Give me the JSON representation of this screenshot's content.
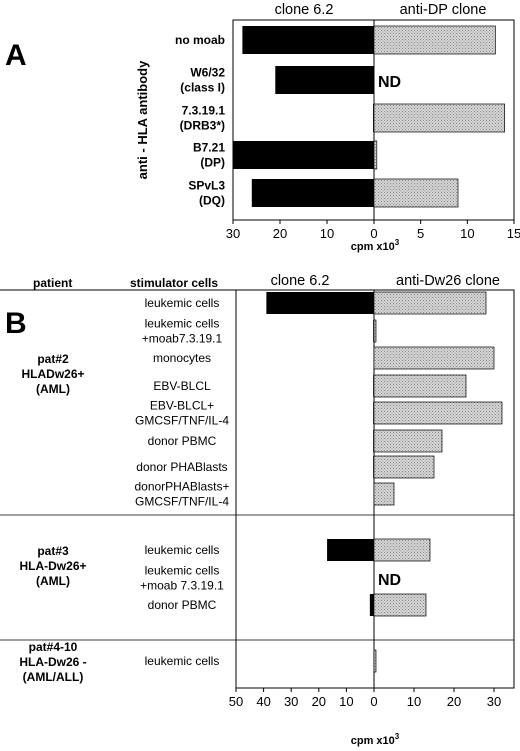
{
  "chart_data": [
    {
      "panel": "A",
      "type": "bar",
      "orientation": "horizontal-diverging",
      "column_headers": [
        "clone 6.2",
        "anti-DP clone"
      ],
      "group_label": "anti - HLA antibody",
      "categories": [
        "no moab",
        "W6/32 (class I)",
        "7.3.19.1 (DRB3*)",
        "B7.21 (DP)",
        "SPvL3 (DQ)"
      ],
      "category_lines": [
        [
          "no moab"
        ],
        [
          "W6/32",
          "(class I)"
        ],
        [
          "7.3.19.1",
          "(DRB3*)"
        ],
        [
          "B7.21",
          "(DP)"
        ],
        [
          "SPvL3",
          "(DQ)"
        ]
      ],
      "series": [
        {
          "name": "clone 6.2",
          "color": "#000000",
          "values": [
            28,
            21,
            0.2,
            30,
            26
          ]
        },
        {
          "name": "anti-DP clone",
          "color": "#c8c8c8",
          "values": [
            13,
            null,
            14,
            0.3,
            9
          ]
        }
      ],
      "annotations": [
        {
          "category_index": 1,
          "side": "right",
          "text": "ND"
        }
      ],
      "left_ticks": [
        "30",
        "20",
        "10",
        "0"
      ],
      "right_ticks": [
        "5",
        "10",
        "15"
      ],
      "xlabel": "cpm x10",
      "xlabel_exponent": "3",
      "left_range": [
        0,
        30
      ],
      "right_range": [
        0,
        15
      ],
      "grid": false
    },
    {
      "panel": "B",
      "type": "bar",
      "orientation": "horizontal-diverging",
      "column_headers": [
        "patient",
        "stimulator cells",
        "clone 6.2",
        "anti-Dw26 clone"
      ],
      "groups": [
        {
          "lines": [
            "pat#2",
            "HLADw26+",
            "(AML)"
          ],
          "rows": [
            0,
            1,
            2,
            3,
            4,
            5,
            6,
            7
          ]
        },
        {
          "lines": [
            "pat#3",
            "HLA-Dw26+",
            "(AML)"
          ],
          "rows": [
            8,
            9,
            10
          ]
        },
        {
          "lines": [
            "pat#4-10",
            "HLA-Dw26 -",
            "(AML/ALL)"
          ],
          "rows": [
            11
          ]
        }
      ],
      "categories": [
        "leukemic cells",
        "leukemic cells +moab7.3.19.1",
        "monocytes",
        "EBV-BLCL",
        "EBV-BLCL+ GMCSF/TNF/IL-4",
        "donor PBMC",
        "donor PHABlasts",
        "donorPHABlasts+ GMCSF/TNF/IL-4",
        "leukemic cells",
        "leukemic cells +moab 7.3.19.1",
        "donor PBMC",
        "leukemic cells"
      ],
      "category_lines": [
        [
          "leukemic cells"
        ],
        [
          "leukemic cells",
          "+moab7.3.19.1"
        ],
        [
          "monocytes"
        ],
        [
          "EBV-BLCL"
        ],
        [
          "EBV-BLCL+",
          "GMCSF/TNF/IL-4"
        ],
        [
          "donor PBMC"
        ],
        [
          "donor PHABlasts"
        ],
        [
          "donorPHABlasts+",
          "GMCSF/TNF/IL-4"
        ],
        [
          "leukemic cells"
        ],
        [
          "leukemic cells",
          "+moab 7.3.19.1"
        ],
        [
          "donor PBMC"
        ],
        [
          "leukemic cells"
        ]
      ],
      "series": [
        {
          "name": "clone 6.2",
          "color": "#000000",
          "values": [
            39,
            0.3,
            0,
            0.3,
            0.3,
            0.3,
            0.3,
            0,
            17,
            null,
            1.5,
            0
          ]
        },
        {
          "name": "anti-Dw26 clone",
          "color": "#c8c8c8",
          "values": [
            28,
            0.5,
            30,
            23,
            32,
            17,
            15,
            5,
            14,
            null,
            13,
            0.5
          ]
        }
      ],
      "annotations": [
        {
          "category_index": 9,
          "side": "right",
          "text": "ND"
        }
      ],
      "left_ticks": [
        "50",
        "40",
        "30",
        "20",
        "10",
        "0"
      ],
      "right_ticks": [
        "10",
        "20",
        "30"
      ],
      "xlabel": "cpm x10",
      "xlabel_exponent": "3",
      "left_range": [
        0,
        50
      ],
      "right_range": [
        0,
        35
      ],
      "grid": false
    }
  ],
  "panel_letters": [
    "A",
    "B"
  ]
}
